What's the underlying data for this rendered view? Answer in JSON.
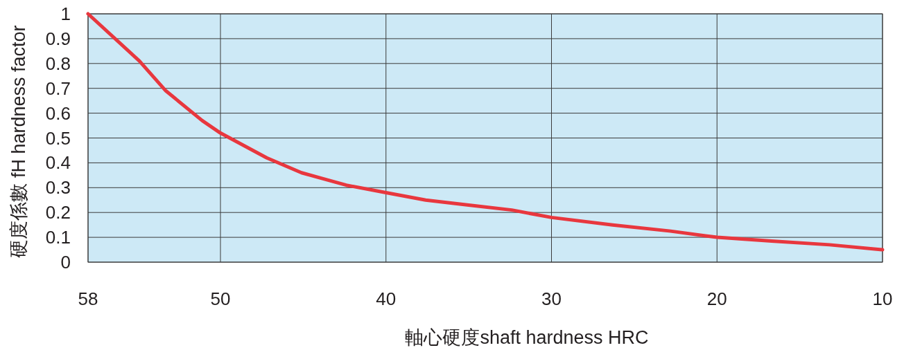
{
  "chart_data": {
    "type": "line",
    "xlabel": "軸心硬度shaft hardness HRC",
    "ylabel": "硬度係數 fH hardness factor",
    "xlim": [
      58,
      10
    ],
    "xticks": [
      58,
      50,
      40,
      30,
      20,
      10
    ],
    "ylim": [
      0,
      1
    ],
    "yticks": [
      0,
      0.1,
      0.2,
      0.3,
      0.4,
      0.5,
      0.6,
      0.7,
      0.8,
      0.9,
      1
    ],
    "grid": true,
    "line_style": "solid",
    "series": [
      {
        "color": "#e8373e",
        "x": [
          58,
          54.9,
          53.3,
          51.1,
          50,
          47.2,
          45.1,
          42.4,
          40,
          37.6,
          35,
          32.4,
          30,
          26.3,
          22.8,
          20,
          16.7,
          13.2,
          10
        ],
        "values": [
          1.0,
          0.81,
          0.69,
          0.57,
          0.52,
          0.42,
          0.36,
          0.31,
          0.28,
          0.25,
          0.23,
          0.21,
          0.18,
          0.15,
          0.125,
          0.1,
          0.085,
          0.07,
          0.05
        ]
      }
    ]
  }
}
